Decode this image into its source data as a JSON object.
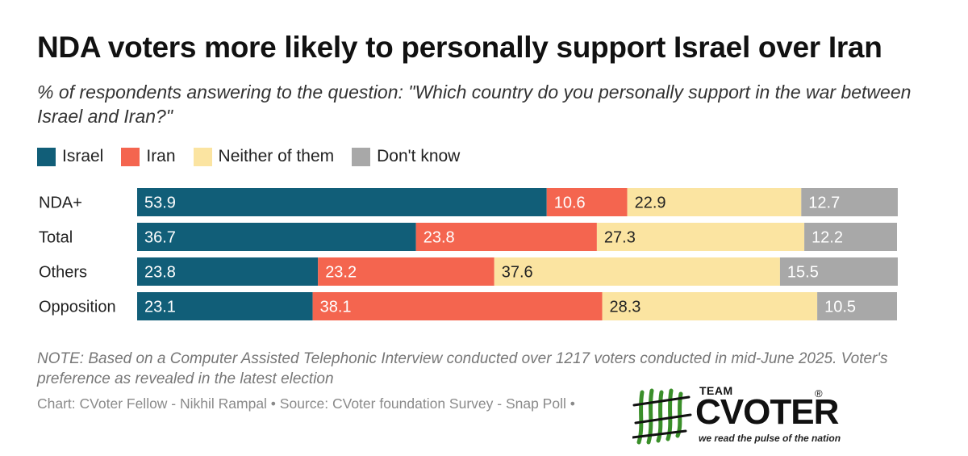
{
  "title": "NDA voters more likely to personally support Israel over Iran",
  "subtitle": "% of respondents answering to the question: \"Which country do you personally support in the war between Israel and Iran?\"",
  "note": "NOTE: Based on a Computer Assisted Telephonic Interview conducted over 1217 voters conducted in mid-June 2025. Voter's preference as revealed in the latest election",
  "credit": "Chart: CVoter Fellow - Nikhil Rampal • Source: CVoter foundation Survey - Snap Poll •",
  "logo": {
    "team": "TEAM",
    "brand": "CVOTER",
    "registered": "®",
    "tagline": "we read the pulse of the nation",
    "icon": "striped-mark-icon"
  },
  "colors": {
    "israel": "#115e78",
    "iran": "#f4654f",
    "neither": "#fbe4a1",
    "dont_know": "#a8a8a8"
  },
  "chart_data": {
    "type": "bar",
    "orientation": "horizontal",
    "stacked": true,
    "categories": [
      "NDA+",
      "Total",
      "Others",
      "Opposition"
    ],
    "series": [
      {
        "name": "Israel",
        "color": "#115e78",
        "values": [
          53.9,
          36.7,
          23.8,
          23.1
        ]
      },
      {
        "name": "Iran",
        "color": "#f4654f",
        "values": [
          10.6,
          23.8,
          23.2,
          38.1
        ]
      },
      {
        "name": "Neither of them",
        "color": "#fbe4a1",
        "values": [
          22.9,
          27.3,
          37.6,
          28.3
        ]
      },
      {
        "name": "Don't know",
        "color": "#a8a8a8",
        "values": [
          12.7,
          12.2,
          15.5,
          10.5
        ]
      }
    ],
    "xlim": [
      0,
      100
    ],
    "legend_position": "top-left",
    "data_labels": true,
    "grid": false
  }
}
